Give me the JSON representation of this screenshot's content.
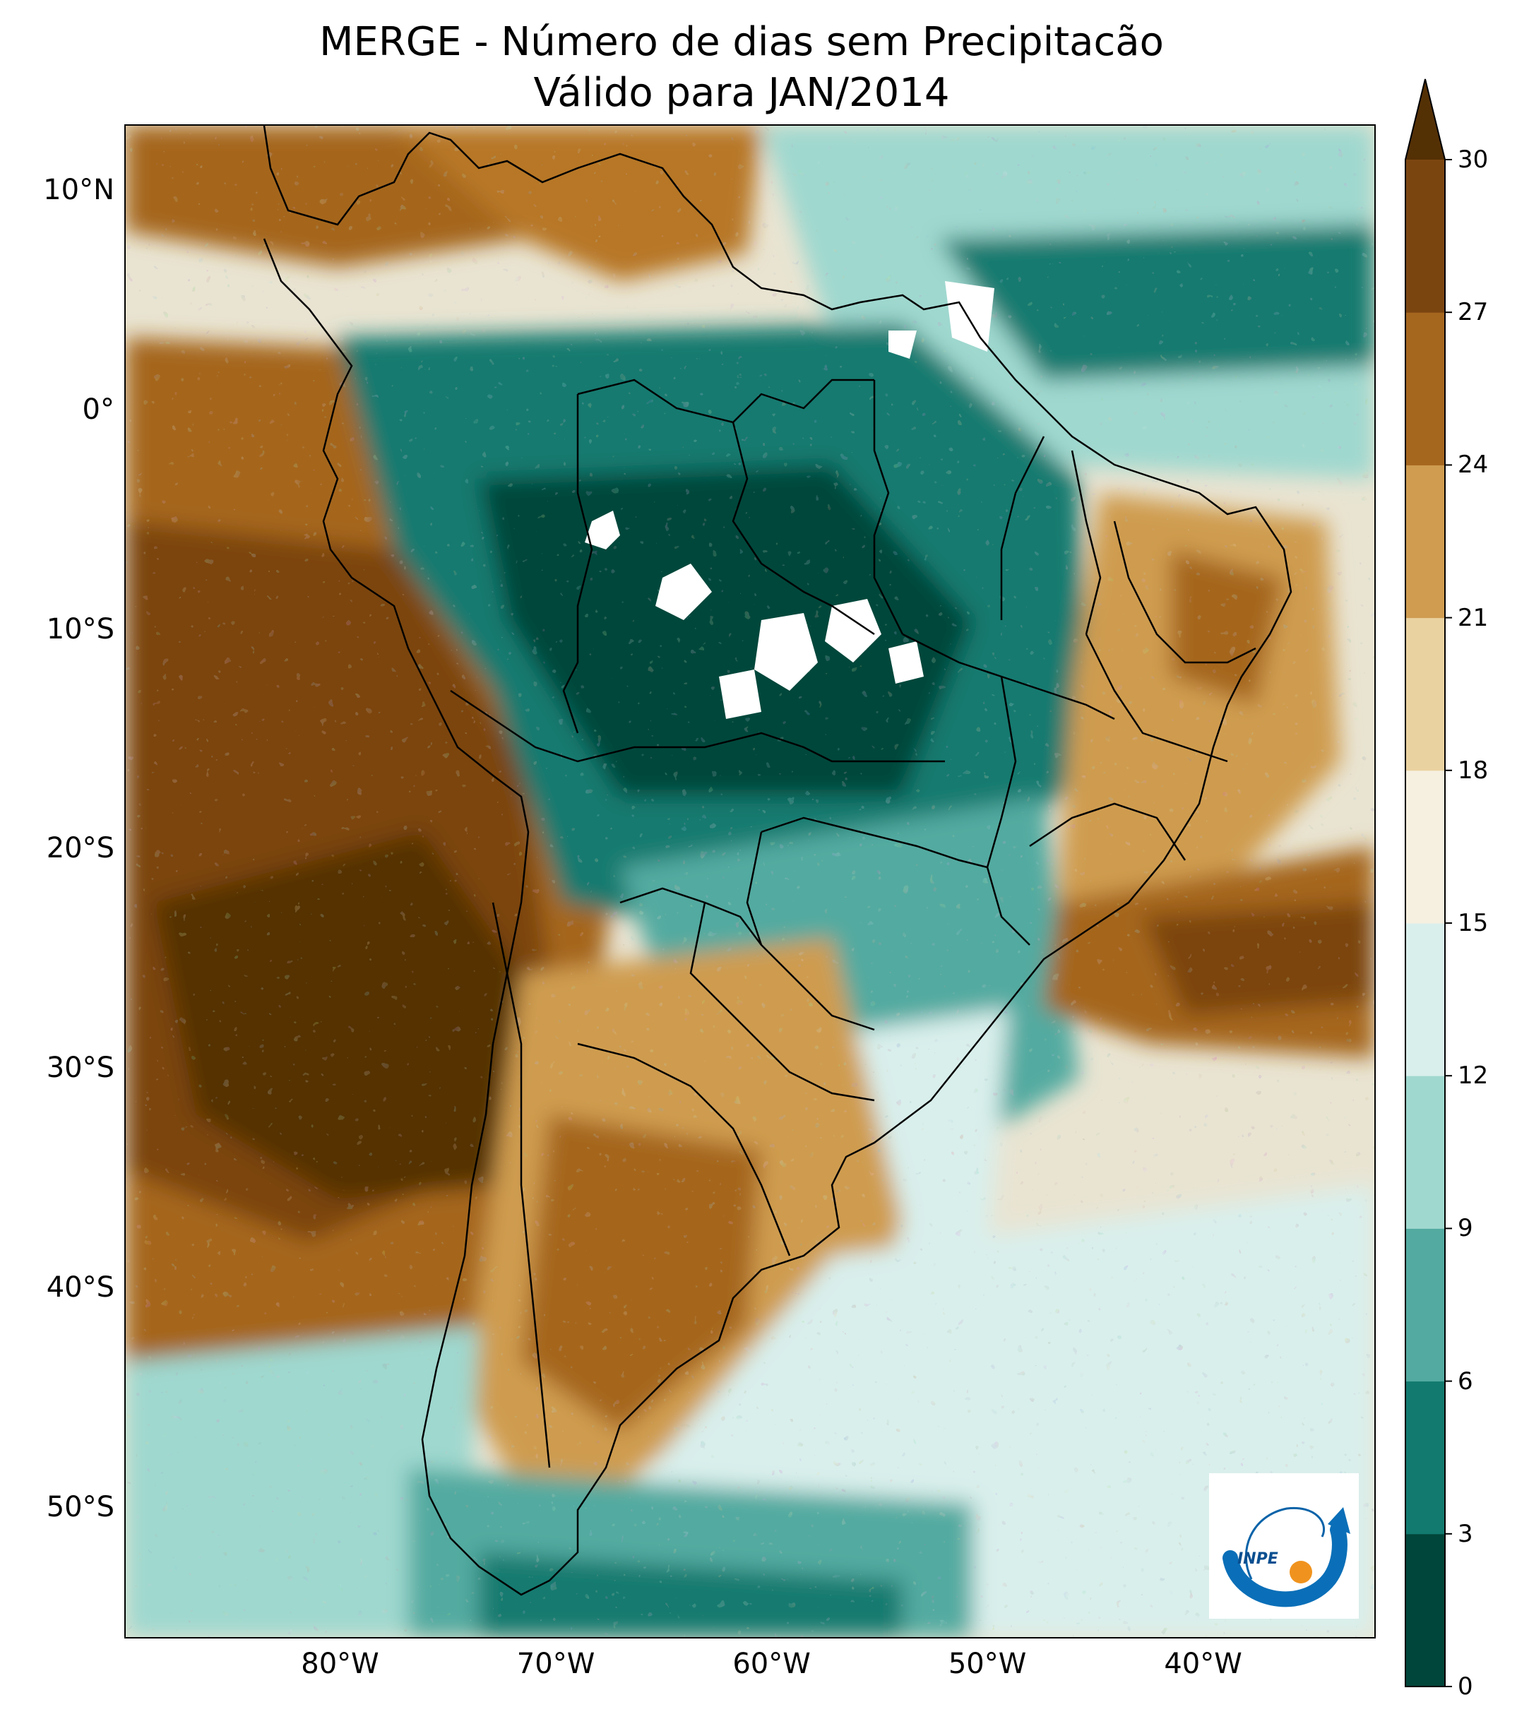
{
  "title": {
    "line1": "MERGE - Número de dias sem Precipitacão",
    "line2": "Válido para JAN/2014"
  },
  "map": {
    "region": "South America",
    "variable": "Número de dias sem Precipitacão",
    "lat_range": [
      -56,
      13
    ],
    "lon_range": [
      -90,
      -32
    ],
    "lat_ticks": [
      {
        "value": 10,
        "label": "10°N"
      },
      {
        "value": 0,
        "label": "0°"
      },
      {
        "value": -10,
        "label": "10°S"
      },
      {
        "value": -20,
        "label": "20°S"
      },
      {
        "value": -30,
        "label": "30°S"
      },
      {
        "value": -40,
        "label": "40°S"
      },
      {
        "value": -50,
        "label": "50°S"
      }
    ],
    "lon_ticks": [
      {
        "value": -80,
        "label": "80°W"
      },
      {
        "value": -70,
        "label": "70°W"
      },
      {
        "value": -60,
        "label": "60°W"
      },
      {
        "value": -50,
        "label": "50°W"
      },
      {
        "value": -40,
        "label": "40°W"
      }
    ]
  },
  "colorbar": {
    "levels": [
      0,
      3,
      6,
      9,
      12,
      15,
      18,
      21,
      24,
      27,
      30
    ],
    "labels": [
      "0",
      "3",
      "6",
      "9",
      "12",
      "15",
      "18",
      "21",
      "24",
      "27",
      "30"
    ],
    "colors": [
      "#01463a",
      "#127a6f",
      "#52aaa0",
      "#9fd8cf",
      "#d9efec",
      "#f6f0e0",
      "#ead2a0",
      "#cf9c50",
      "#a5661e",
      "#7b4510"
    ],
    "extend_color": "#543005",
    "extend": "max"
  },
  "logo": {
    "text": "INPE"
  }
}
